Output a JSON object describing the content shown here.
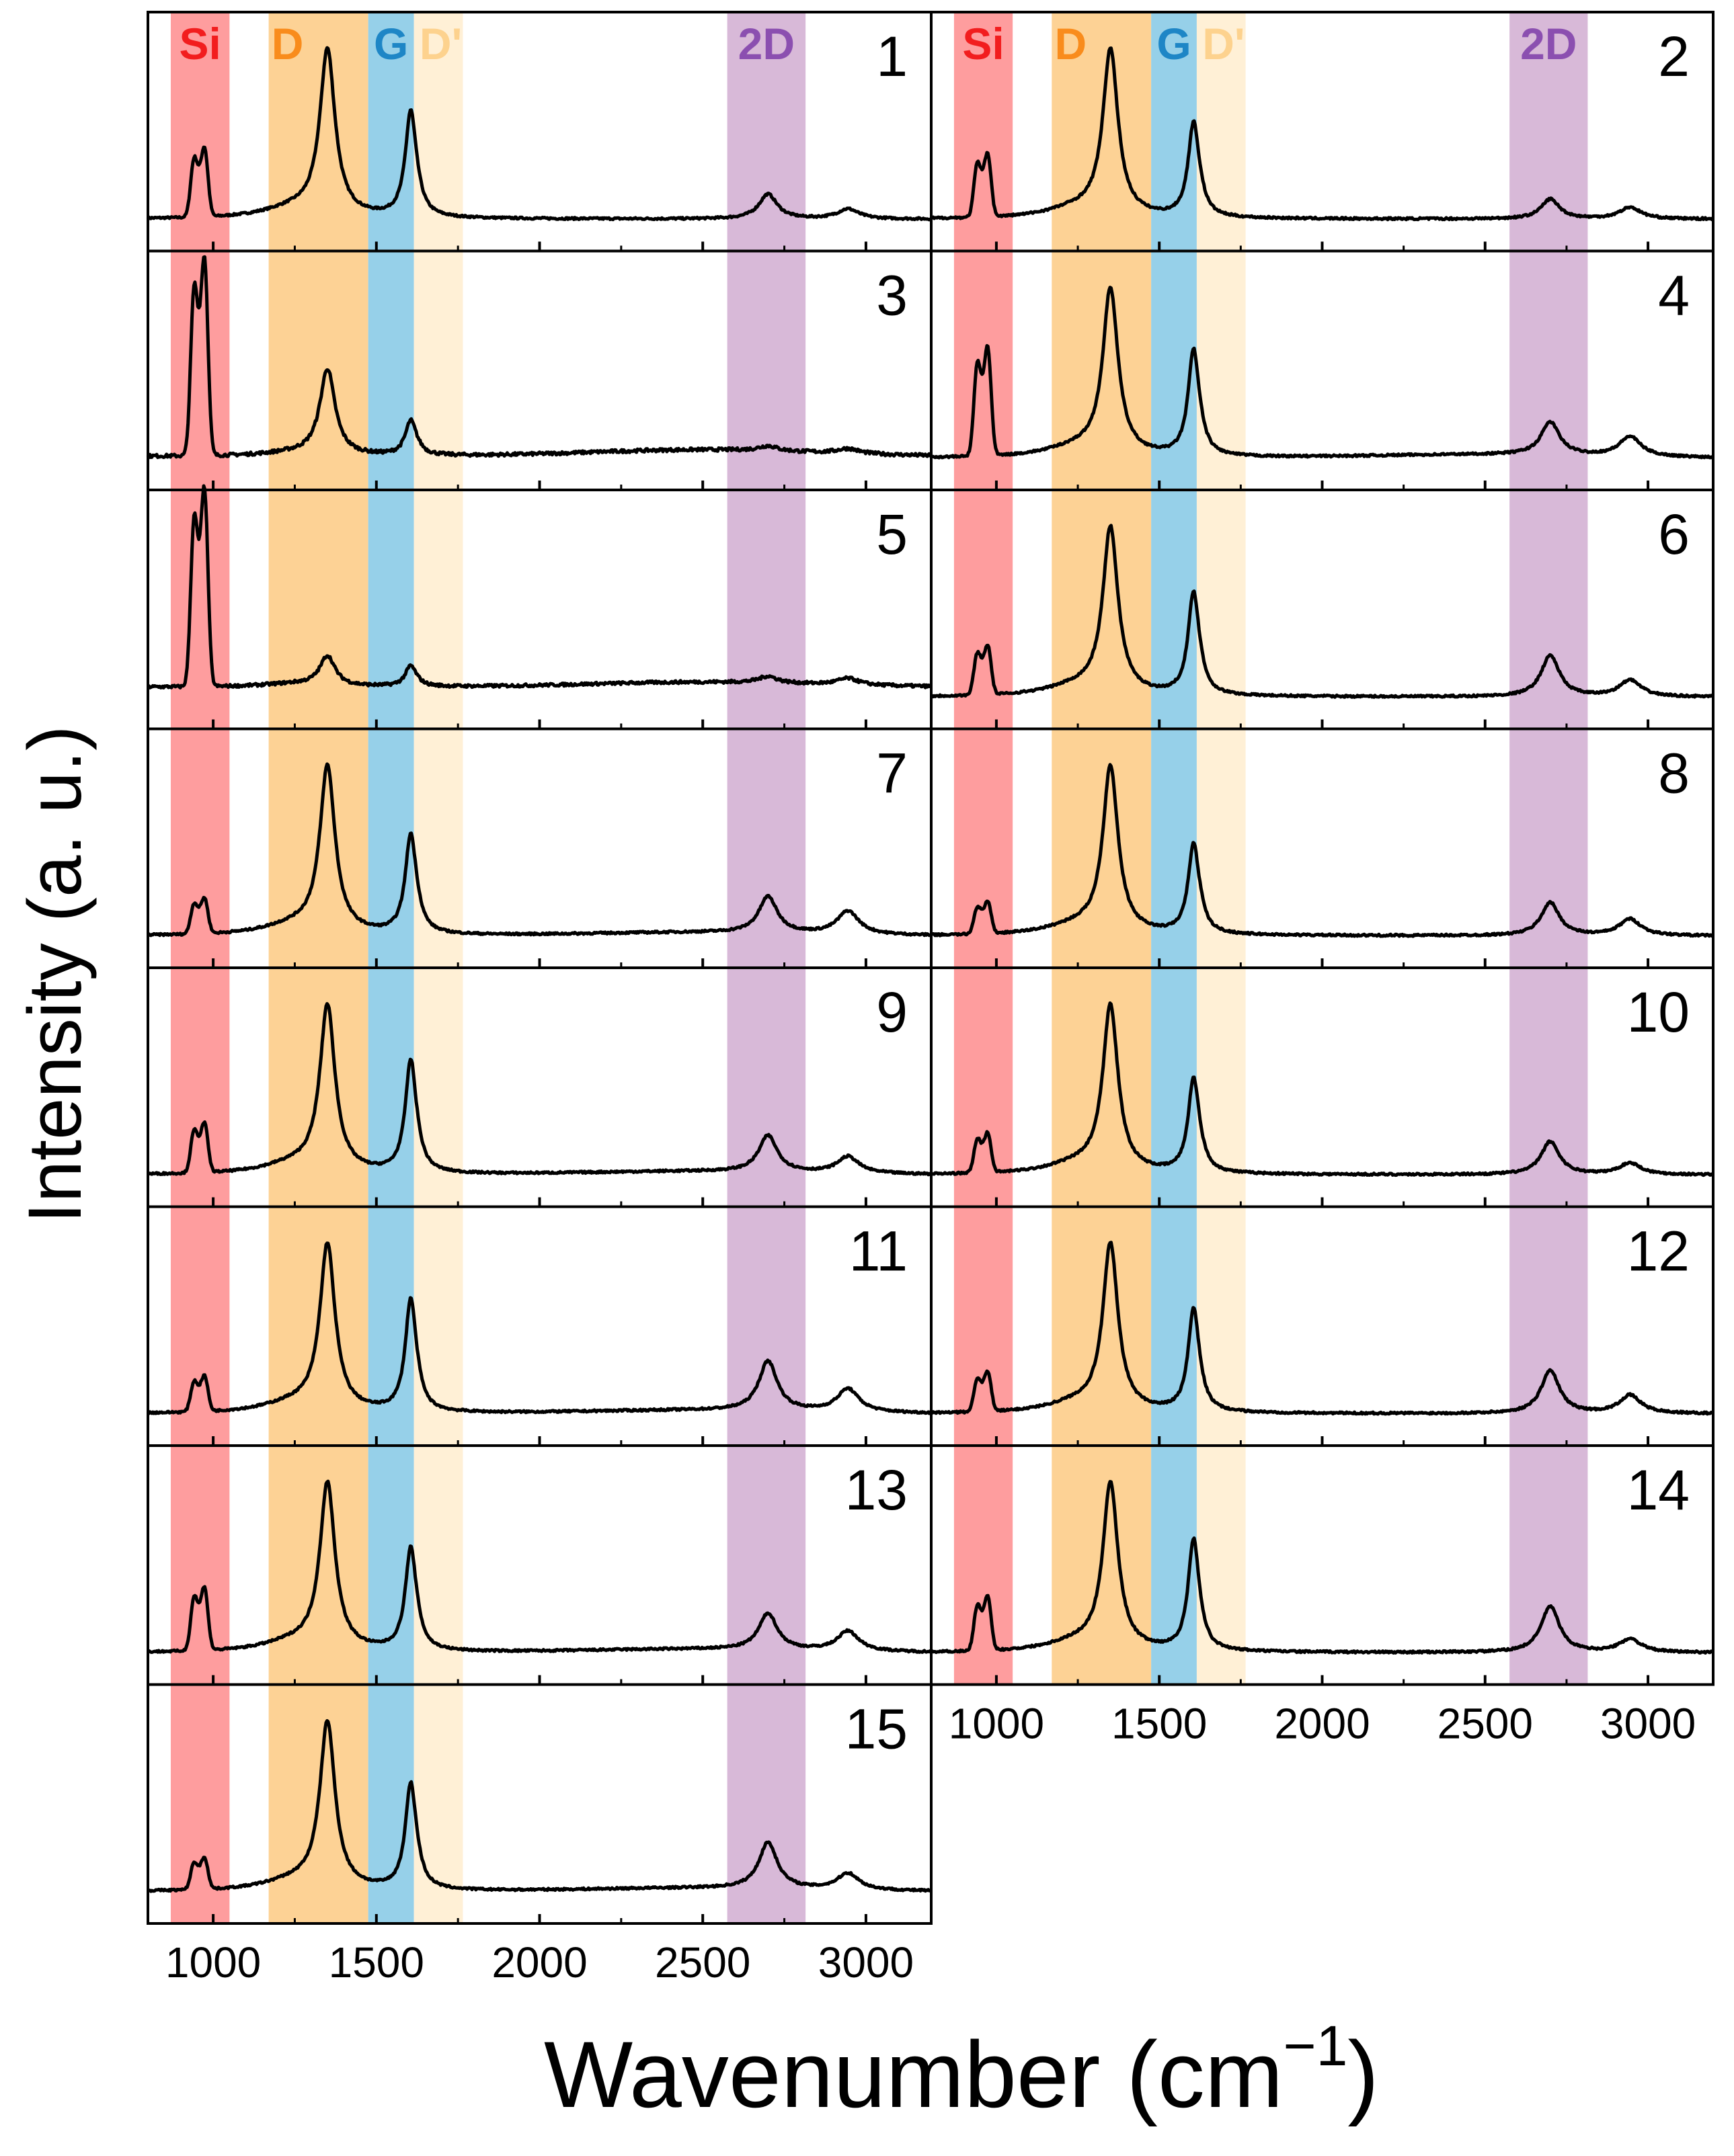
{
  "chart_data": {
    "type": "line",
    "title": "",
    "xlabel": "Wavenumber (cm",
    "xlabel_sup": "−1",
    "xlabel_close": ")",
    "ylabel": "Intensity (a. u.)",
    "xlim": [
      800,
      3200
    ],
    "xticks": [
      "1000",
      "1500",
      "2000",
      "2500",
      "3000"
    ],
    "xtick_values": [
      1000,
      1500,
      2000,
      2500,
      3000
    ],
    "bands": [
      {
        "label": "Si",
        "range": [
          870,
          1050
        ],
        "color": "#fe9d9e",
        "label_color": "#f21d1e"
      },
      {
        "label": "D",
        "range": [
          1170,
          1475
        ],
        "color": "#fdd295",
        "label_color": "#f98c1c"
      },
      {
        "label": "G",
        "range": [
          1475,
          1615
        ],
        "color": "#96d0e9",
        "label_color": "#1e86c6"
      },
      {
        "label": "D'",
        "range": [
          1615,
          1765
        ],
        "color": "#fff0d6",
        "label_color": "#fdd28e"
      },
      {
        "label": "2D",
        "range": [
          2575,
          2815
        ],
        "color": "#d8b9d8",
        "label_color": "#8b4fb0"
      }
    ],
    "series": [
      {
        "name": "1",
        "si": 0.35,
        "d": 1.0,
        "g": 0.62,
        "dp": 0.05,
        "d2": 0.15,
        "dd": 0.06,
        "base": 0.03,
        "dsh": 0.06,
        "noise": 0.006,
        "bg": 0.0
      },
      {
        "name": "2",
        "si": 0.32,
        "d": 1.0,
        "g": 0.55,
        "dp": 0.05,
        "d2": 0.12,
        "dd": 0.07,
        "base": 0.03,
        "dsh": 0.06,
        "noise": 0.006,
        "bg": 0.0
      },
      {
        "name": "3",
        "si": 1.0,
        "d": 0.52,
        "g": 0.2,
        "dp": 0.02,
        "d2": 0.03,
        "dd": 0.03,
        "base": 0.04,
        "dsh": 0.02,
        "noise": 0.01,
        "bg": 0.04
      },
      {
        "name": "4",
        "si": 0.55,
        "d": 1.0,
        "g": 0.62,
        "dp": 0.05,
        "d2": 0.2,
        "dd": 0.12,
        "base": 0.03,
        "dsh": 0.06,
        "noise": 0.006,
        "bg": 0.02
      },
      {
        "name": "5",
        "si": 1.0,
        "d": 0.18,
        "g": 0.12,
        "dp": 0.01,
        "d2": 0.04,
        "dd": 0.04,
        "base": 0.09,
        "dsh": 0.02,
        "noise": 0.009,
        "bg": 0.03
      },
      {
        "name": "6",
        "si": 0.25,
        "d": 1.0,
        "g": 0.6,
        "dp": 0.05,
        "d2": 0.25,
        "dd": 0.1,
        "base": 0.03,
        "dsh": 0.06,
        "noise": 0.006,
        "bg": 0.0
      },
      {
        "name": "7",
        "si": 0.18,
        "d": 1.0,
        "g": 0.58,
        "dp": 0.05,
        "d2": 0.22,
        "dd": 0.14,
        "base": 0.03,
        "dsh": 0.06,
        "noise": 0.006,
        "bg": 0.02
      },
      {
        "name": "8",
        "si": 0.16,
        "d": 1.0,
        "g": 0.52,
        "dp": 0.05,
        "d2": 0.2,
        "dd": 0.1,
        "base": 0.03,
        "dsh": 0.06,
        "noise": 0.006,
        "bg": 0.0
      },
      {
        "name": "9",
        "si": 0.25,
        "d": 1.0,
        "g": 0.66,
        "dp": 0.05,
        "d2": 0.22,
        "dd": 0.1,
        "base": 0.03,
        "dsh": 0.06,
        "noise": 0.006,
        "bg": 0.02
      },
      {
        "name": "10",
        "si": 0.2,
        "d": 1.0,
        "g": 0.55,
        "dp": 0.05,
        "d2": 0.2,
        "dd": 0.07,
        "base": 0.03,
        "dsh": 0.06,
        "noise": 0.006,
        "bg": 0.0
      },
      {
        "name": "11",
        "si": 0.18,
        "d": 1.0,
        "g": 0.66,
        "dp": 0.05,
        "d2": 0.3,
        "dd": 0.14,
        "base": 0.03,
        "dsh": 0.06,
        "noise": 0.006,
        "bg": 0.02
      },
      {
        "name": "12",
        "si": 0.2,
        "d": 1.0,
        "g": 0.6,
        "dp": 0.05,
        "d2": 0.26,
        "dd": 0.11,
        "base": 0.03,
        "dsh": 0.06,
        "noise": 0.006,
        "bg": 0.0
      },
      {
        "name": "13",
        "si": 0.32,
        "d": 1.0,
        "g": 0.6,
        "dp": 0.05,
        "d2": 0.22,
        "dd": 0.12,
        "base": 0.03,
        "dsh": 0.06,
        "noise": 0.006,
        "bg": 0.02
      },
      {
        "name": "14",
        "si": 0.27,
        "d": 1.0,
        "g": 0.65,
        "dp": 0.05,
        "d2": 0.28,
        "dd": 0.08,
        "base": 0.03,
        "dsh": 0.06,
        "noise": 0.006,
        "bg": 0.0
      },
      {
        "name": "15",
        "si": 0.16,
        "d": 1.0,
        "g": 0.62,
        "dp": 0.05,
        "d2": 0.28,
        "dd": 0.1,
        "base": 0.03,
        "dsh": 0.06,
        "noise": 0.006,
        "bg": 0.02
      }
    ],
    "peak_positions": {
      "si": 960,
      "d": 1350,
      "g": 1605,
      "d2": 2700,
      "dd": 2945
    },
    "layout": {
      "columns": 2,
      "left_column_panels": [
        "1",
        "3",
        "5",
        "7",
        "9",
        "11",
        "13",
        "15"
      ],
      "right_column_panels": [
        "2",
        "4",
        "6",
        "8",
        "10",
        "12",
        "14"
      ]
    }
  }
}
